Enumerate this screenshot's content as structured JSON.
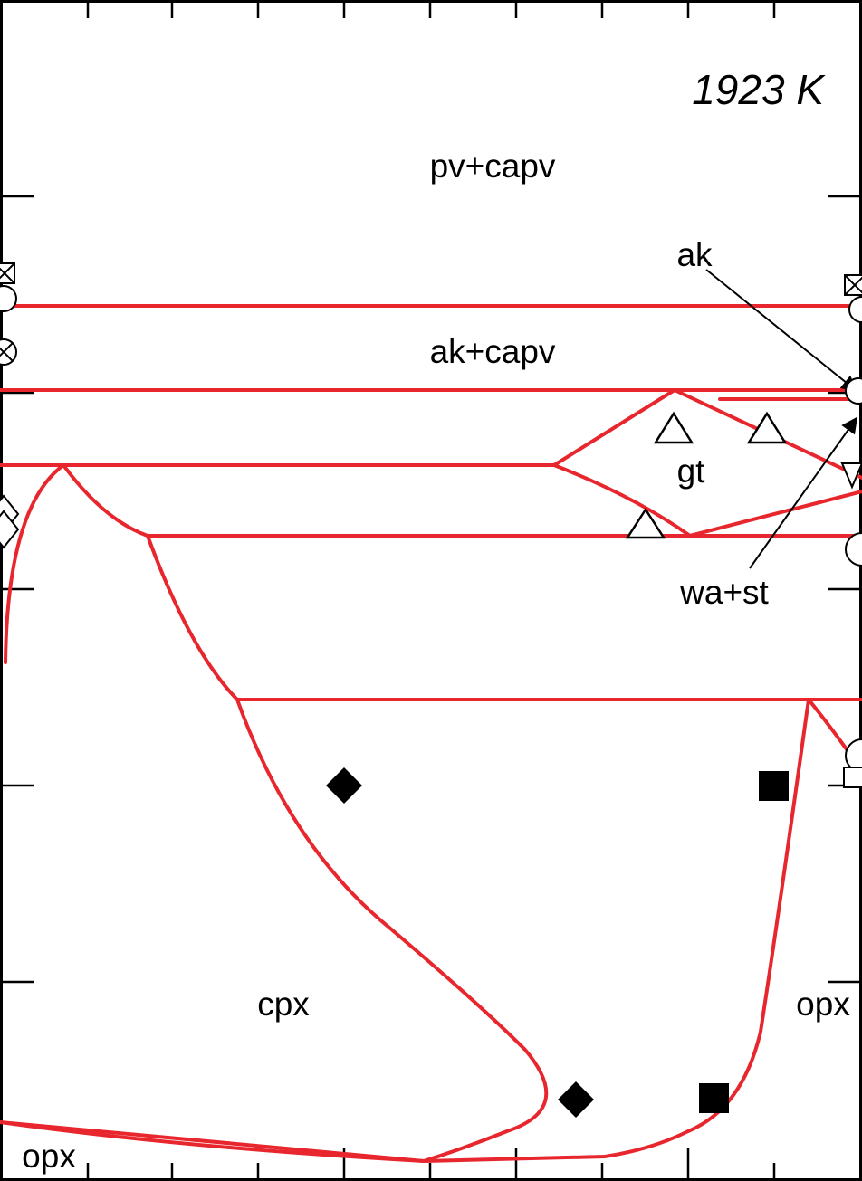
{
  "temperature_label": "1923 K",
  "field_labels": {
    "pv_capv": "pv+capv",
    "ak_capv": "ak+capv",
    "gt": "gt",
    "cpx": "cpx",
    "opx_right": "opx",
    "opx_bottom": "opx"
  },
  "callouts": {
    "ak": "ak",
    "wa_st": "wa+st"
  },
  "colors": {
    "boundary": "#e8262d",
    "frame": "#000000",
    "marker": "#000000"
  },
  "marker_types": {
    "open_triangle": "experiment-gt",
    "filled_diamond": "experiment-cpx",
    "filled_square": "experiment-opx"
  }
}
